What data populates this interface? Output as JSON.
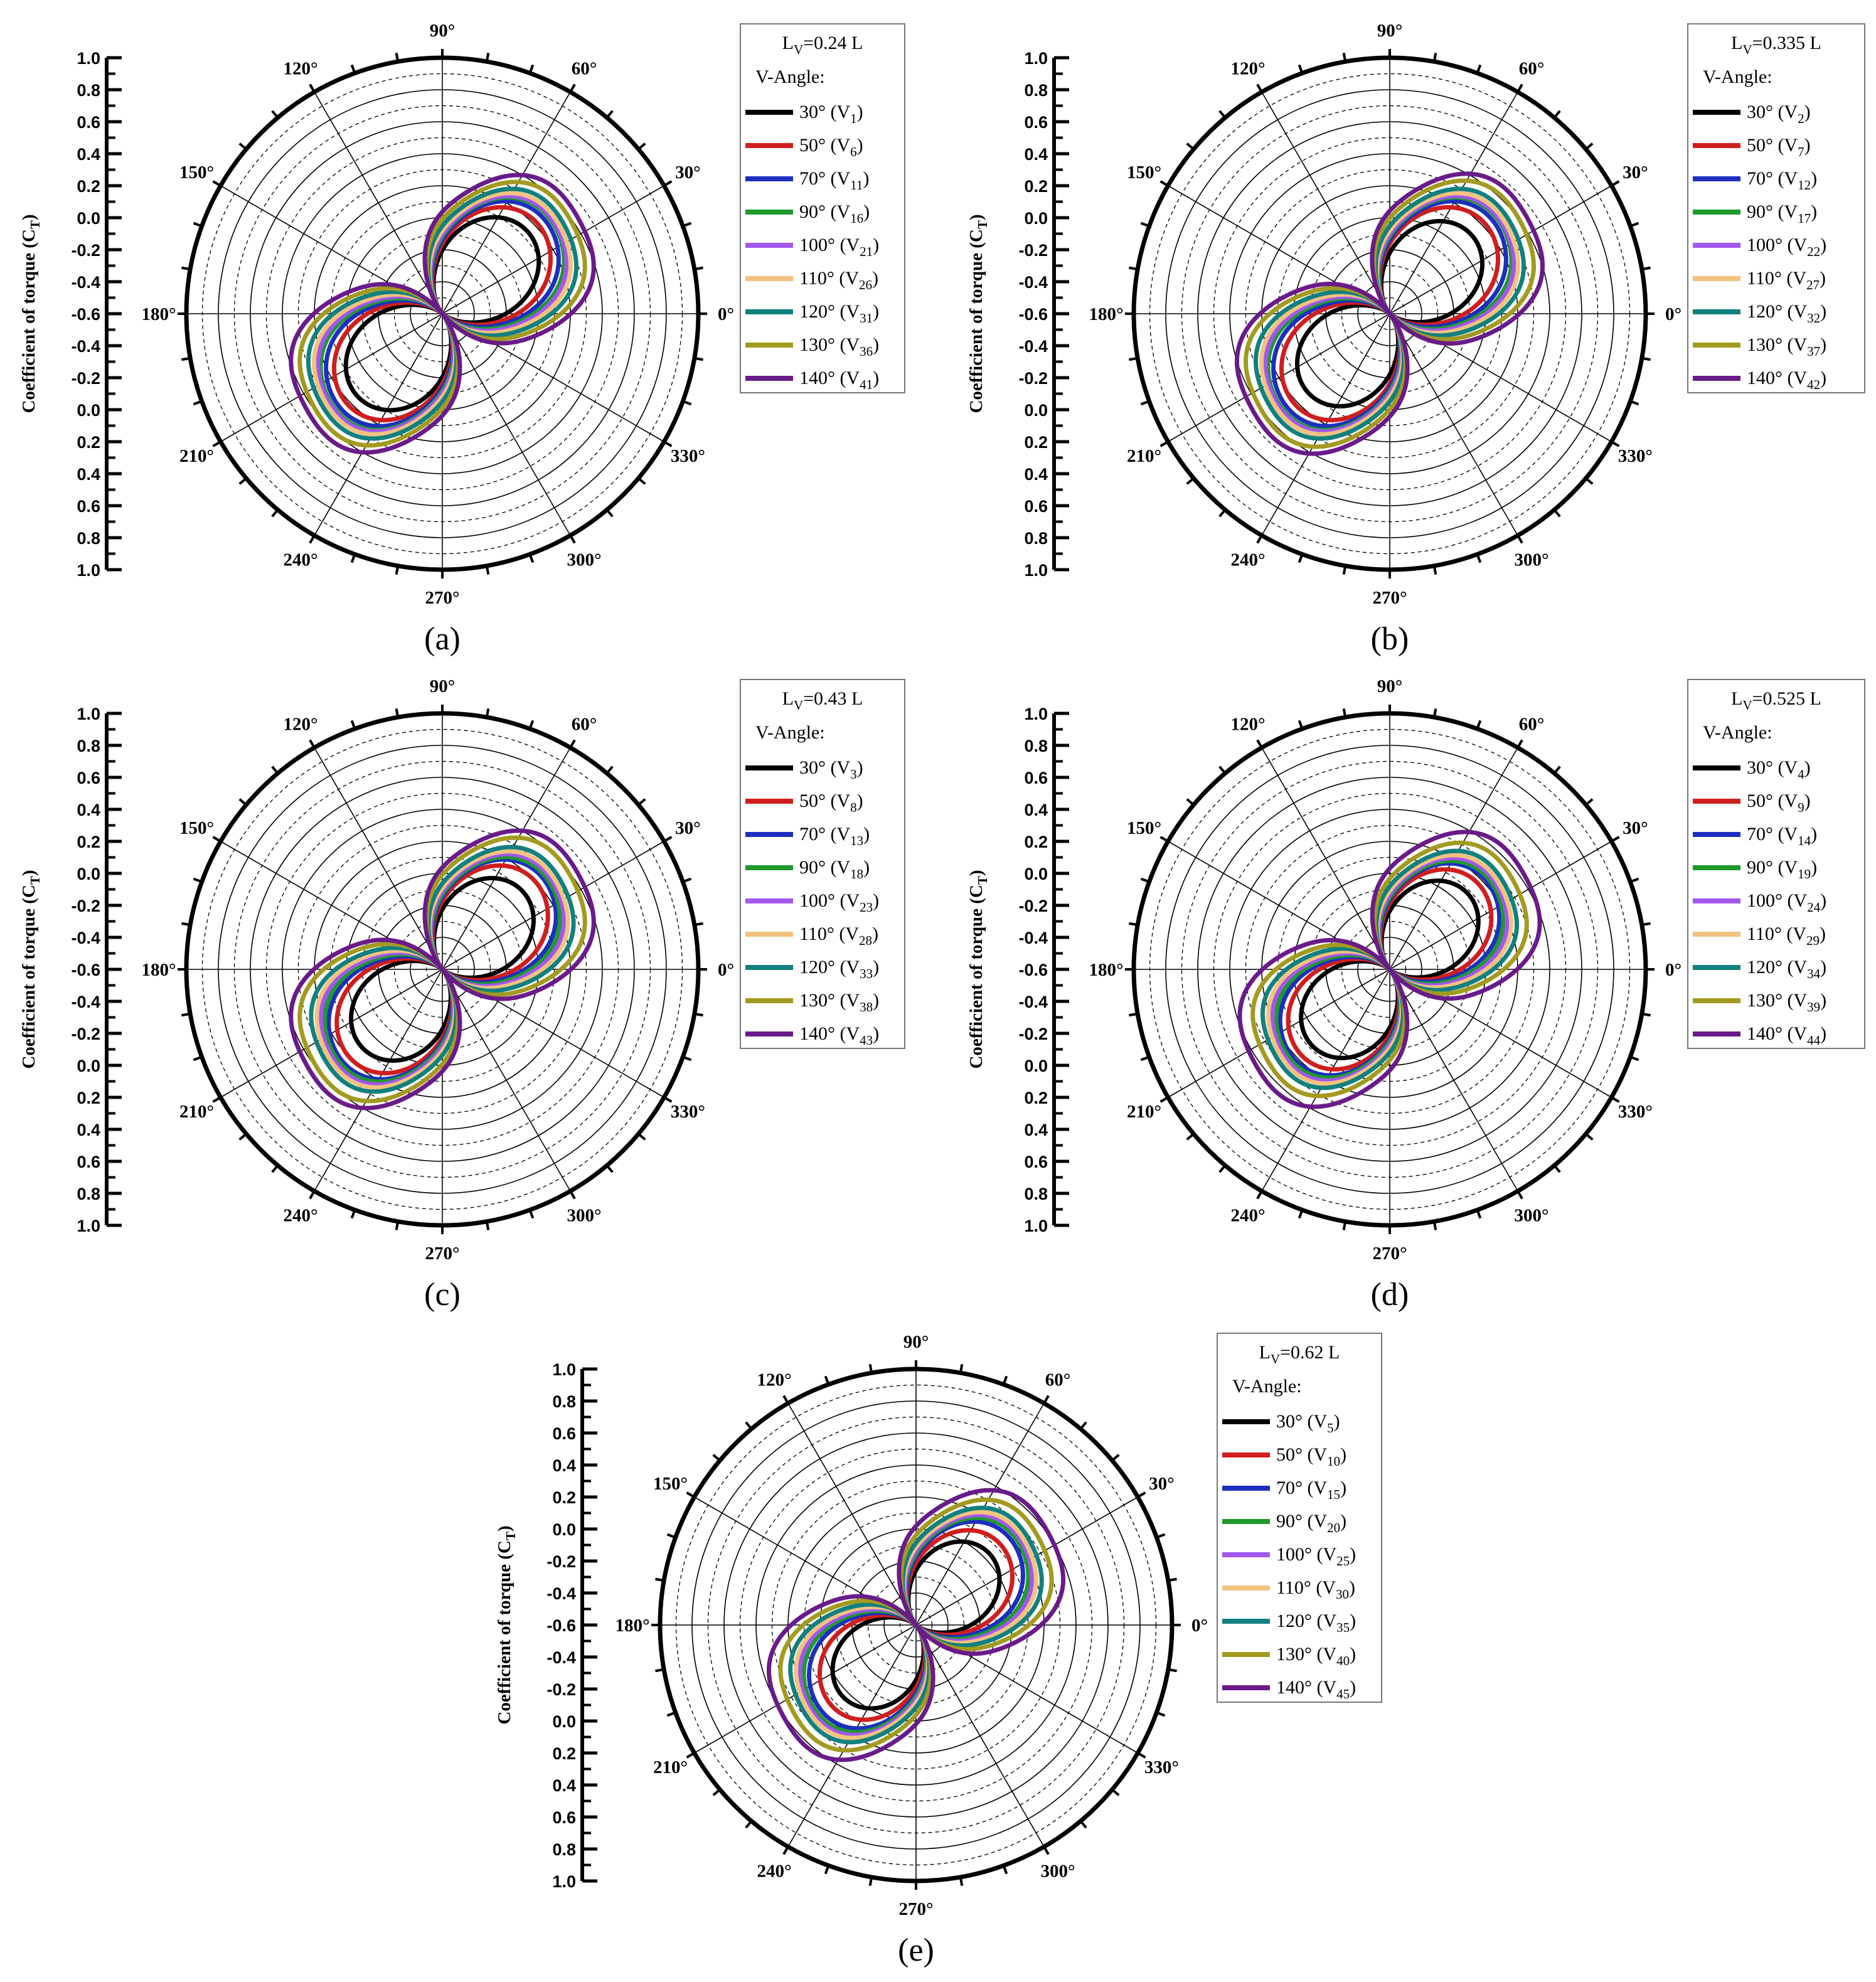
{
  "chart_data": [
    {
      "type": "polar-line",
      "panel_label": "(a)",
      "legend_title": "L",
      "legend_title_sub": "V",
      "legend_title_rest": "=0.24 L",
      "legend_subtitle": "V-Angle:",
      "ylabel": "Coefficient of torque (C",
      "ylabel_sub": "T",
      "ylabel_end": ")",
      "r_tick_labels": [
        "1.0",
        "0.8",
        "0.6",
        "0.4",
        "0.2",
        "0.0",
        "-0.2",
        "-0.4",
        "-0.6",
        "-0.4",
        "-0.2",
        "0.0",
        "0.2",
        "0.4",
        "0.6",
        "0.8",
        "1.0"
      ],
      "angle_labels": [
        "0°",
        "30°",
        "60°",
        "90°",
        "120°",
        "150°",
        "180°",
        "210°",
        "240°",
        "270°",
        "300°",
        "330°"
      ],
      "rlim": [
        -0.6,
        1.0
      ],
      "series": [
        {
          "name": "30° (V",
          "sub": "1",
          "end": ")",
          "color": "#000000",
          "peak": 0.14,
          "skew": 0.0
        },
        {
          "name": "50° (V",
          "sub": "6",
          "end": ")",
          "color": "#d01e1e",
          "peak": 0.22,
          "skew": 0.04
        },
        {
          "name": "70° (V",
          "sub": "11",
          "end": ")",
          "color": "#1d2fbf",
          "peak": 0.27,
          "skew": 0.08
        },
        {
          "name": "90° (V",
          "sub": "16",
          "end": ")",
          "color": "#1f9a2c",
          "peak": 0.3,
          "skew": 0.11
        },
        {
          "name": "100° (V",
          "sub": "21",
          "end": ")",
          "color": "#a257ee",
          "peak": 0.31,
          "skew": 0.13
        },
        {
          "name": "110° (V",
          "sub": "26",
          "end": ")",
          "color": "#f2c27f",
          "peak": 0.33,
          "skew": 0.15
        },
        {
          "name": "120° (V",
          "sub": "31",
          "end": ")",
          "color": "#11807e",
          "peak": 0.36,
          "skew": 0.17
        },
        {
          "name": "130° (V",
          "sub": "36",
          "end": ")",
          "color": "#a39a20",
          "peak": 0.41,
          "skew": 0.19
        },
        {
          "name": "140° (V",
          "sub": "41",
          "end": ")",
          "color": "#6a1b8a",
          "peak": 0.46,
          "skew": 0.21
        }
      ]
    },
    {
      "type": "polar-line",
      "panel_label": "(b)",
      "legend_title": "L",
      "legend_title_sub": "V",
      "legend_title_rest": "=0.335 L",
      "legend_subtitle": "V-Angle:",
      "ylabel": "Coefficient of torque (C",
      "ylabel_sub": "T",
      "ylabel_end": ")",
      "r_tick_labels": [
        "1.0",
        "0.8",
        "0.6",
        "0.4",
        "0.2",
        "0.0",
        "-0.2",
        "-0.4",
        "-0.6",
        "-0.4",
        "-0.2",
        "0.0",
        "0.2",
        "0.4",
        "0.6",
        "0.8",
        "1.0"
      ],
      "angle_labels": [
        "0°",
        "30°",
        "60°",
        "90°",
        "120°",
        "150°",
        "180°",
        "210°",
        "240°",
        "270°",
        "300°",
        "330°"
      ],
      "rlim": [
        -0.6,
        1.0
      ],
      "series": [
        {
          "name": "30° (V",
          "sub": "2",
          "end": ")",
          "color": "#000000",
          "peak": 0.11,
          "skew": 0.0
        },
        {
          "name": "50° (V",
          "sub": "7",
          "end": ")",
          "color": "#d01e1e",
          "peak": 0.22,
          "skew": 0.04
        },
        {
          "name": "70° (V",
          "sub": "12",
          "end": ")",
          "color": "#1d2fbf",
          "peak": 0.27,
          "skew": 0.08
        },
        {
          "name": "90° (V",
          "sub": "17",
          "end": ")",
          "color": "#1f9a2c",
          "peak": 0.3,
          "skew": 0.11
        },
        {
          "name": "100° (V",
          "sub": "22",
          "end": ")",
          "color": "#a257ee",
          "peak": 0.31,
          "skew": 0.13
        },
        {
          "name": "110° (V",
          "sub": "27",
          "end": ")",
          "color": "#f2c27f",
          "peak": 0.33,
          "skew": 0.15
        },
        {
          "name": "120° (V",
          "sub": "32",
          "end": ")",
          "color": "#11807e",
          "peak": 0.36,
          "skew": 0.17
        },
        {
          "name": "130° (V",
          "sub": "37",
          "end": ")",
          "color": "#a39a20",
          "peak": 0.42,
          "skew": 0.19
        },
        {
          "name": "140° (V",
          "sub": "42",
          "end": ")",
          "color": "#6a1b8a",
          "peak": 0.47,
          "skew": 0.21
        }
      ]
    },
    {
      "type": "polar-line",
      "panel_label": "(c)",
      "legend_title": "L",
      "legend_title_sub": "V",
      "legend_title_rest": "=0.43 L",
      "legend_subtitle": "V-Angle:",
      "ylabel": "Coefficient of torque (C",
      "ylabel_sub": "T",
      "ylabel_end": ")",
      "r_tick_labels": [
        "1.0",
        "0.8",
        "0.6",
        "0.4",
        "0.2",
        "0.0",
        "-0.2",
        "-0.4",
        "-0.6",
        "-0.4",
        "-0.2",
        "0.0",
        "0.2",
        "0.4",
        "0.6",
        "0.8",
        "1.0"
      ],
      "angle_labels": [
        "0°",
        "30°",
        "60°",
        "90°",
        "120°",
        "150°",
        "180°",
        "210°",
        "240°",
        "270°",
        "300°",
        "330°"
      ],
      "rlim": [
        -0.6,
        1.0
      ],
      "series": [
        {
          "name": "30° (V",
          "sub": "3",
          "end": ")",
          "color": "#000000",
          "peak": 0.1,
          "skew": 0.0
        },
        {
          "name": "50° (V",
          "sub": "8",
          "end": ")",
          "color": "#d01e1e",
          "peak": 0.2,
          "skew": 0.04
        },
        {
          "name": "70° (V",
          "sub": "13",
          "end": ")",
          "color": "#1d2fbf",
          "peak": 0.25,
          "skew": 0.08
        },
        {
          "name": "90° (V",
          "sub": "18",
          "end": ")",
          "color": "#1f9a2c",
          "peak": 0.27,
          "skew": 0.11
        },
        {
          "name": "100° (V",
          "sub": "23",
          "end": ")",
          "color": "#a257ee",
          "peak": 0.29,
          "skew": 0.13
        },
        {
          "name": "110° (V",
          "sub": "28",
          "end": ")",
          "color": "#f2c27f",
          "peak": 0.31,
          "skew": 0.15
        },
        {
          "name": "120° (V",
          "sub": "33",
          "end": ")",
          "color": "#11807e",
          "peak": 0.34,
          "skew": 0.17
        },
        {
          "name": "130° (V",
          "sub": "38",
          "end": ")",
          "color": "#a39a20",
          "peak": 0.41,
          "skew": 0.19
        },
        {
          "name": "140° (V",
          "sub": "43",
          "end": ")",
          "color": "#6a1b8a",
          "peak": 0.46,
          "skew": 0.21
        }
      ]
    },
    {
      "type": "polar-line",
      "panel_label": "(d)",
      "legend_title": "L",
      "legend_title_sub": "V",
      "legend_title_rest": "=0.525 L",
      "legend_subtitle": "V-Angle:",
      "ylabel": "Coefficient of torque (C",
      "ylabel_sub": "T",
      "ylabel_end": ")",
      "r_tick_labels": [
        "1.0",
        "0.8",
        "0.6",
        "0.4",
        "0.2",
        "0.0",
        "-0.2",
        "-0.4",
        "-0.6",
        "-0.4",
        "-0.2",
        "0.0",
        "0.2",
        "0.4",
        "0.6",
        "0.8",
        "1.0"
      ],
      "angle_labels": [
        "0°",
        "30°",
        "60°",
        "90°",
        "120°",
        "150°",
        "180°",
        "210°",
        "240°",
        "270°",
        "300°",
        "330°"
      ],
      "rlim": [
        -0.6,
        1.0
      ],
      "series": [
        {
          "name": "30° (V",
          "sub": "4",
          "end": ")",
          "color": "#000000",
          "peak": 0.08,
          "skew": 0.0
        },
        {
          "name": "50° (V",
          "sub": "9",
          "end": ")",
          "color": "#d01e1e",
          "peak": 0.17,
          "skew": 0.04
        },
        {
          "name": "70° (V",
          "sub": "14",
          "end": ")",
          "color": "#1d2fbf",
          "peak": 0.22,
          "skew": 0.08
        },
        {
          "name": "90° (V",
          "sub": "19",
          "end": ")",
          "color": "#1f9a2c",
          "peak": 0.24,
          "skew": 0.11
        },
        {
          "name": "100° (V",
          "sub": "24",
          "end": ")",
          "color": "#a257ee",
          "peak": 0.26,
          "skew": 0.13
        },
        {
          "name": "110° (V",
          "sub": "29",
          "end": ")",
          "color": "#f2c27f",
          "peak": 0.28,
          "skew": 0.15
        },
        {
          "name": "120° (V",
          "sub": "34",
          "end": ")",
          "color": "#11807e",
          "peak": 0.31,
          "skew": 0.17
        },
        {
          "name": "130° (V",
          "sub": "39",
          "end": ")",
          "color": "#a39a20",
          "peak": 0.37,
          "skew": 0.19
        },
        {
          "name": "140° (V",
          "sub": "44",
          "end": ")",
          "color": "#6a1b8a",
          "peak": 0.45,
          "skew": 0.21
        }
      ]
    },
    {
      "type": "polar-line",
      "panel_label": "(e)",
      "legend_title": "L",
      "legend_title_sub": "V",
      "legend_title_rest": "=0.62 L",
      "legend_subtitle": "V-Angle:",
      "ylabel": "Coefficient of torque (C",
      "ylabel_sub": "T",
      "ylabel_end": ")",
      "r_tick_labels": [
        "1.0",
        "0.8",
        "0.6",
        "0.4",
        "0.2",
        "0.0",
        "-0.2",
        "-0.4",
        "-0.6",
        "-0.4",
        "-0.2",
        "0.0",
        "0.2",
        "0.4",
        "0.6",
        "0.8",
        "1.0"
      ],
      "angle_labels": [
        "0°",
        "30°",
        "60°",
        "90°",
        "120°",
        "150°",
        "180°",
        "210°",
        "240°",
        "270°",
        "300°",
        "330°"
      ],
      "rlim": [
        -0.6,
        1.0
      ],
      "series": [
        {
          "name": "30° (V",
          "sub": "5",
          "end": ")",
          "color": "#000000",
          "peak": 0.04,
          "skew": 0.0
        },
        {
          "name": "50° (V",
          "sub": "10",
          "end": ")",
          "color": "#d01e1e",
          "peak": 0.13,
          "skew": 0.04
        },
        {
          "name": "70° (V",
          "sub": "15",
          "end": ")",
          "color": "#1d2fbf",
          "peak": 0.2,
          "skew": 0.08
        },
        {
          "name": "90° (V",
          "sub": "20",
          "end": ")",
          "color": "#1f9a2c",
          "peak": 0.23,
          "skew": 0.11
        },
        {
          "name": "100° (V",
          "sub": "25",
          "end": ")",
          "color": "#a257ee",
          "peak": 0.25,
          "skew": 0.13
        },
        {
          "name": "110° (V",
          "sub": "30",
          "end": ")",
          "color": "#f2c27f",
          "peak": 0.27,
          "skew": 0.15
        },
        {
          "name": "120° (V",
          "sub": "35",
          "end": ")",
          "color": "#11807e",
          "peak": 0.3,
          "skew": 0.17
        },
        {
          "name": "130° (V",
          "sub": "40",
          "end": ")",
          "color": "#a39a20",
          "peak": 0.36,
          "skew": 0.19
        },
        {
          "name": "140° (V",
          "sub": "45",
          "end": ")",
          "color": "#6a1b8a",
          "peak": 0.43,
          "skew": 0.21
        }
      ]
    }
  ]
}
